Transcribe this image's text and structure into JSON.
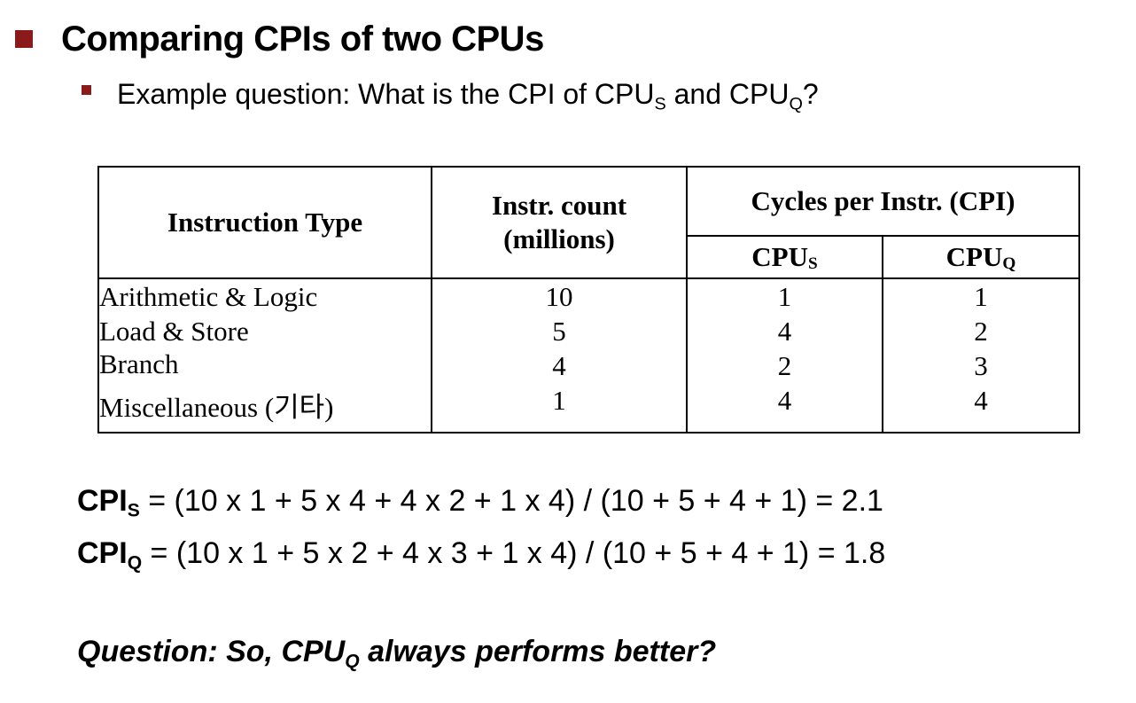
{
  "heading": {
    "title": "Comparing CPIs of two CPUs",
    "bullet_color": "#8b1a1a"
  },
  "subheading": {
    "prefix": "Example question: What is the CPI of CPU",
    "sub_s": "S",
    "mid": " and CPU",
    "sub_q": "Q",
    "suffix": "?"
  },
  "table": {
    "header": {
      "type": "Instruction Type",
      "count_line1": "Instr. count",
      "count_line2": "(millions)",
      "cpi_group": "Cycles per Instr. (CPI)",
      "cpu_s_base": "CPU",
      "cpu_s_sub": "S",
      "cpu_q_base": "CPU",
      "cpu_q_sub": "Q"
    },
    "rows": [
      {
        "type": "Arithmetic & Logic",
        "count": "10",
        "cpu_s": "1",
        "cpu_q": "1"
      },
      {
        "type": "Load & Store",
        "count": "5",
        "cpu_s": "4",
        "cpu_q": "2"
      },
      {
        "type": "Branch",
        "count": "4",
        "cpu_s": "2",
        "cpu_q": "3"
      },
      {
        "type": "Miscellaneous (기타)",
        "count": "1",
        "cpu_s": "4",
        "cpu_q": "4"
      }
    ]
  },
  "formulas": [
    {
      "label": "CPI",
      "sub": "S",
      "expr": " = (10 x 1 + 5 x 4 + 4 x 2 + 1 x 4) / (10 + 5 + 4 + 1) = 2.1"
    },
    {
      "label": "CPI",
      "sub": "Q",
      "expr": " = (10 x 1 + 5 x 2 + 4 x 3 + 1 x 4) / (10 + 5 + 4 + 1) = 1.8"
    }
  ],
  "question": {
    "prefix": "Question: So, CPU",
    "sub": "Q",
    "suffix": " always performs better?"
  }
}
